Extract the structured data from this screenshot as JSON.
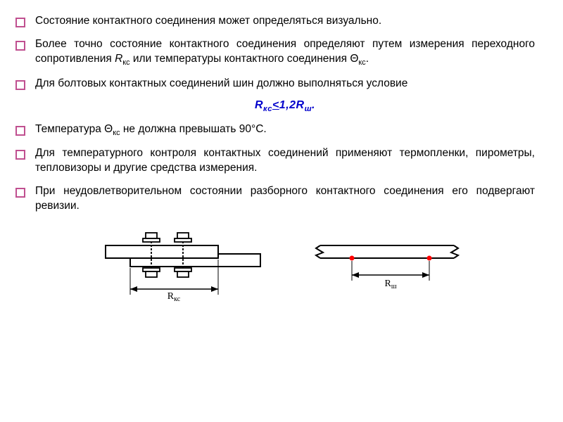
{
  "bullets": [
    "Состояние контактного соединения может определяться визуально.",
    "Более точно состояние контактного соединения определяют путем измерения переходного сопротивления <i>R</i><sub>кс</sub> или температуры контактного соединения Θ<sub>кс</sub>.",
    "Для болтовых контактных соединений шин должно выполняться условие",
    "Температура Θ<sub>кс</sub> не должна превышать 90°С.",
    "Для температурного контроля контактных соединений применяют термопленки, пирометры, тепловизоры и другие средства измерения.",
    "При неудовлетворительном состоянии разборного контактного соединения его подвергают ревизии."
  ],
  "formula": "R<sub>кс</sub><u>&lt;</u>1,2R<sub>ш</sub>.",
  "diagram1": {
    "label": "R<sub>кс</sub>",
    "colors": {
      "stroke": "#000000",
      "bolt_fill": "#ffffff",
      "hatch": "#808080"
    }
  },
  "diagram2": {
    "label": "R<sub>ш</sub>",
    "colors": {
      "stroke": "#000000",
      "dot": "#ff0000"
    }
  },
  "text_color": "#000000",
  "bullet_border_color": "#c05090",
  "formula_color": "#0000cc",
  "font_size_pt": 12,
  "background_color": "#ffffff"
}
